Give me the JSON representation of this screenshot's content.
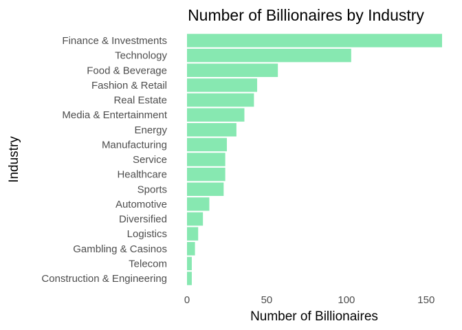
{
  "chart_data": {
    "type": "bar",
    "orientation": "horizontal",
    "title": "Number of Billionaires by Industry",
    "xlabel": "Number of Billionaires",
    "ylabel": "Industry",
    "categories": [
      "Finance & Investments",
      "Technology",
      "Food & Beverage",
      "Fashion & Retail",
      "Real Estate",
      "Media & Entertainment",
      "Energy",
      "Manufacturing",
      "Service",
      "Healthcare",
      "Sports",
      "Automotive",
      "Diversified",
      "Logistics",
      "Gambling & Casinos",
      "Telecom",
      "Construction & Engineering"
    ],
    "values": [
      160,
      103,
      57,
      44,
      42,
      36,
      31,
      25,
      24,
      24,
      23,
      14,
      10,
      7,
      5,
      3,
      3
    ],
    "xlim": [
      0,
      160
    ],
    "xticks": [
      0,
      50,
      100,
      150
    ],
    "grid": false,
    "bar_color": "#87e8b1"
  }
}
